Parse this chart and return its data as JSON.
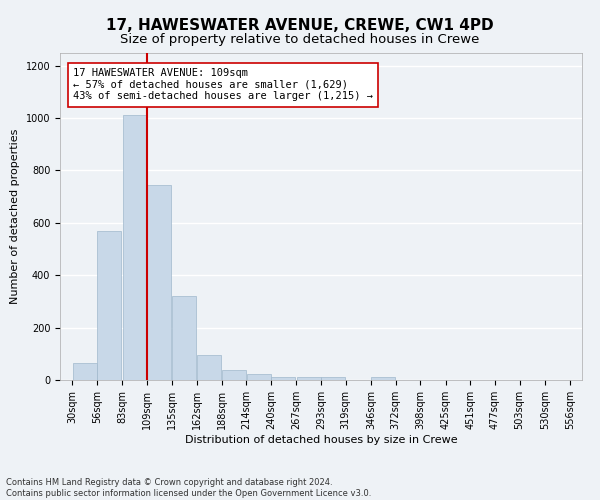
{
  "title": "17, HAWESWATER AVENUE, CREWE, CW1 4PD",
  "subtitle": "Size of property relative to detached houses in Crewe",
  "xlabel": "Distribution of detached houses by size in Crewe",
  "ylabel": "Number of detached properties",
  "bar_edges": [
    30,
    56,
    83,
    109,
    135,
    162,
    188,
    214,
    240,
    267,
    293,
    319,
    346,
    372,
    398,
    425,
    451,
    477,
    503,
    530,
    556
  ],
  "bar_heights": [
    65,
    570,
    1010,
    745,
    320,
    95,
    40,
    22,
    13,
    13,
    13,
    0,
    13,
    0,
    0,
    0,
    0,
    0,
    0,
    0
  ],
  "bar_color": "#c8d8e8",
  "bar_edge_color": "#a0b8cc",
  "property_value": 109,
  "red_line_color": "#cc0000",
  "annotation_text": "17 HAWESWATER AVENUE: 109sqm\n← 57% of detached houses are smaller (1,629)\n43% of semi-detached houses are larger (1,215) →",
  "annotation_box_color": "#ffffff",
  "annotation_box_edge_color": "#cc0000",
  "ylim": [
    0,
    1250
  ],
  "yticks": [
    0,
    200,
    400,
    600,
    800,
    1000,
    1200
  ],
  "background_color": "#eef2f6",
  "grid_color": "#ffffff",
  "footnote": "Contains HM Land Registry data © Crown copyright and database right 2024.\nContains public sector information licensed under the Open Government Licence v3.0.",
  "title_fontsize": 11,
  "subtitle_fontsize": 9.5,
  "label_fontsize": 8,
  "tick_fontsize": 7,
  "annotation_fontsize": 7.5
}
